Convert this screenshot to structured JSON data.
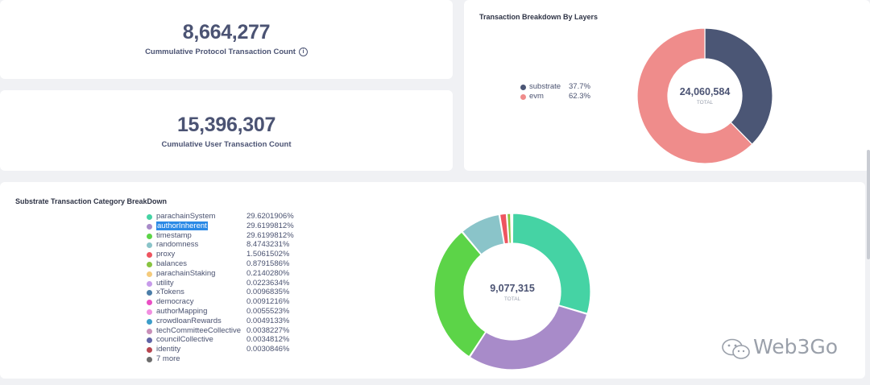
{
  "protocol_card": {
    "value": "8,664,277",
    "label": "Cummulative Protocol Transaction Count",
    "info_icon": "info-icon"
  },
  "user_card": {
    "value": "15,396,307",
    "label": "Cumulative User Transaction Count"
  },
  "layers_card": {
    "title": "Transaction Breakdown By Layers",
    "center_value": "24,060,584",
    "center_label": "TOTAL"
  },
  "substrate_card": {
    "title": "Substrate Transaction Category BreakDown",
    "center_value": "9,077,315",
    "center_label": "TOTAL",
    "more_label": "7 more"
  },
  "watermark": {
    "text": "Web3Go"
  },
  "chart_data": [
    {
      "type": "pie",
      "title": "Transaction Breakdown By Layers",
      "total": 24060584,
      "slices": [
        {
          "label": "substrate",
          "percent_text": "37.7%",
          "value": 37.7,
          "color": "#4b5675"
        },
        {
          "label": "evm",
          "percent_text": "62.3%",
          "value": 62.3,
          "color": "#ef8c8b"
        }
      ],
      "legend_position": "left"
    },
    {
      "type": "pie",
      "title": "Substrate Transaction Category BreakDown",
      "total": 9077315,
      "slices": [
        {
          "label": "parachainSystem",
          "percent_text": "29.6201906%",
          "value": 29.6201906,
          "color": "#45d3a4"
        },
        {
          "label": "authorInherent",
          "percent_text": "29.6199812%",
          "value": 29.6199812,
          "color": "#a88bc9"
        },
        {
          "label": "timestamp",
          "percent_text": "29.6199812%",
          "value": 29.6199812,
          "color": "#5cd448"
        },
        {
          "label": "randomness",
          "percent_text": "8.4743231%",
          "value": 8.4743231,
          "color": "#8ac4c9"
        },
        {
          "label": "proxy",
          "percent_text": "1.5061502%",
          "value": 1.5061502,
          "color": "#ee5560"
        },
        {
          "label": "balances",
          "percent_text": "0.8791586%",
          "value": 0.8791586,
          "color": "#88c441"
        },
        {
          "label": "parachainStaking",
          "percent_text": "0.2140280%",
          "value": 0.214028,
          "color": "#f5cb7c"
        },
        {
          "label": "utility",
          "percent_text": "0.0223634%",
          "value": 0.0223634,
          "color": "#c79bea"
        },
        {
          "label": "xTokens",
          "percent_text": "0.0096835%",
          "value": 0.0096835,
          "color": "#4c7ea8"
        },
        {
          "label": "democracy",
          "percent_text": "0.0091216%",
          "value": 0.0091216,
          "color": "#ea4fc4"
        },
        {
          "label": "authorMapping",
          "percent_text": "0.0055523%",
          "value": 0.0055523,
          "color": "#f18fe0"
        },
        {
          "label": "crowdloanRewards",
          "percent_text": "0.0049133%",
          "value": 0.0049133,
          "color": "#3c9dc9"
        },
        {
          "label": "techCommitteeCollective",
          "percent_text": "0.0038227%",
          "value": 0.0038227,
          "color": "#c88fb8"
        },
        {
          "label": "councilCollective",
          "percent_text": "0.0034812%",
          "value": 0.0034812,
          "color": "#6165a6"
        },
        {
          "label": "identity",
          "percent_text": "0.0030846%",
          "value": 0.0030846,
          "color": "#b74650"
        }
      ],
      "other": {
        "label": "7 more",
        "color": "#6d6d6d"
      },
      "highlighted_label": "authorInherent",
      "highlight_color": "#2b8ae6",
      "legend_position": "left"
    }
  ]
}
